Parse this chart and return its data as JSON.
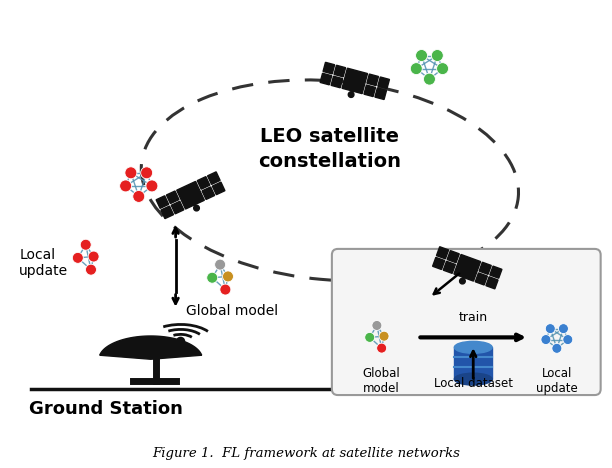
{
  "title": "Figure 1.  FL framework at satellite networks",
  "leo_label": "LEO satellite\nconstellation",
  "ground_station_label": "Ground Station",
  "local_update_label": "Local\nupdate",
  "global_model_label": "Global model",
  "box_global_model": "Global\nmodel",
  "box_local_update": "Local\nupdate",
  "box_local_dataset": "Local dataset",
  "box_train": "train",
  "bg_color": "#ffffff",
  "node_red": "#e52020",
  "node_green": "#4ab54a",
  "node_blue": "#3a80d0",
  "node_orange": "#c89020",
  "node_gray": "#999999",
  "node_lightblue": "#70b0d0",
  "edge_red": "#5090b0",
  "edge_blue": "#5090b0",
  "satellite_color": "#111111",
  "arrow_color": "#111111",
  "dashed_color": "#333333",
  "box_bg": "#f5f5f5",
  "box_edge": "#999999",
  "db_blue": "#2255aa",
  "db_light": "#4488cc"
}
